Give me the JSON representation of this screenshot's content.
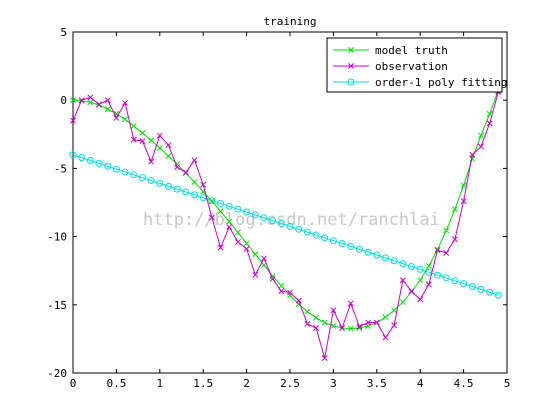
{
  "chart_data": {
    "type": "line",
    "title": "training",
    "xlabel": "",
    "ylabel": "",
    "xlim": [
      0,
      5
    ],
    "ylim": [
      -20,
      5
    ],
    "x_ticks": [
      "0",
      "0.5",
      "1",
      "1.5",
      "2",
      "2.5",
      "3",
      "3.5",
      "4",
      "4.5",
      "5"
    ],
    "y_ticks": [
      "5",
      "0",
      "-5",
      "-10",
      "-15",
      "-20"
    ],
    "grid": false,
    "legend_position": "top-right",
    "watermark": "http://blog.csdn.net/ranchlai",
    "series": [
      {
        "name": "model truth",
        "color": "#00dd00",
        "marker": "x",
        "x": [
          0.0,
          0.1,
          0.2,
          0.3,
          0.4,
          0.5,
          0.6,
          0.7,
          0.8,
          0.9,
          1.0,
          1.1,
          1.2,
          1.3,
          1.4,
          1.5,
          1.6,
          1.7,
          1.8,
          1.9,
          2.0,
          2.1,
          2.2,
          2.3,
          2.4,
          2.5,
          2.6,
          2.7,
          2.8,
          2.9,
          3.0,
          3.1,
          3.2,
          3.3,
          3.4,
          3.5,
          3.6,
          3.7,
          3.8,
          3.9,
          4.0,
          4.1,
          4.2,
          4.3,
          4.4,
          4.5,
          4.6,
          4.7,
          4.8,
          4.9
        ],
        "y": [
          0.0,
          -0.05,
          -0.15,
          -0.35,
          -0.65,
          -1.0,
          -1.4,
          -1.9,
          -2.4,
          -2.95,
          -3.5,
          -4.1,
          -4.7,
          -5.35,
          -6.0,
          -6.7,
          -7.4,
          -8.15,
          -8.9,
          -9.7,
          -10.5,
          -11.3,
          -12.1,
          -12.9,
          -13.6,
          -14.3,
          -14.95,
          -15.5,
          -15.95,
          -16.3,
          -16.55,
          -16.7,
          -16.75,
          -16.7,
          -16.55,
          -16.3,
          -15.9,
          -15.4,
          -14.8,
          -14.05,
          -13.2,
          -12.15,
          -10.95,
          -9.55,
          -8.0,
          -6.25,
          -4.3,
          -2.6,
          -1.0,
          0.7
        ]
      },
      {
        "name": "observation",
        "color": "#cc00cc",
        "marker": "x",
        "x": [
          0.0,
          0.1,
          0.2,
          0.3,
          0.4,
          0.5,
          0.6,
          0.7,
          0.8,
          0.9,
          1.0,
          1.1,
          1.2,
          1.3,
          1.4,
          1.5,
          1.6,
          1.7,
          1.8,
          1.9,
          2.0,
          2.1,
          2.2,
          2.3,
          2.4,
          2.5,
          2.6,
          2.7,
          2.8,
          2.9,
          3.0,
          3.1,
          3.2,
          3.3,
          3.4,
          3.5,
          3.6,
          3.7,
          3.8,
          3.9,
          4.0,
          4.1,
          4.2,
          4.3,
          4.4,
          4.5,
          4.6,
          4.7,
          4.8,
          4.9
        ],
        "y": [
          -1.5,
          0.0,
          0.2,
          -0.3,
          0.0,
          -1.3,
          -0.2,
          -2.9,
          -3.0,
          -4.5,
          -2.6,
          -3.3,
          -4.9,
          -5.3,
          -4.4,
          -6.2,
          -8.6,
          -10.8,
          -9.3,
          -10.4,
          -10.9,
          -12.8,
          -11.6,
          -13.1,
          -14.0,
          -14.1,
          -14.7,
          -16.4,
          -16.7,
          -18.9,
          -15.4,
          -16.7,
          -14.9,
          -16.6,
          -16.3,
          -16.3,
          -17.4,
          -16.5,
          -13.2,
          -14.0,
          -14.6,
          -13.5,
          -11.0,
          -11.2,
          -10.2,
          -7.4,
          -4.0,
          -3.4,
          -1.7,
          0.6
        ]
      },
      {
        "name": "order-1 poly fitting",
        "color": "#00dddd",
        "marker": "o",
        "x": [
          0.0,
          0.1,
          0.2,
          0.3,
          0.4,
          0.5,
          0.6,
          0.7,
          0.8,
          0.9,
          1.0,
          1.1,
          1.2,
          1.3,
          1.4,
          1.5,
          1.6,
          1.7,
          1.8,
          1.9,
          2.0,
          2.1,
          2.2,
          2.3,
          2.4,
          2.5,
          2.6,
          2.7,
          2.8,
          2.9,
          3.0,
          3.1,
          3.2,
          3.3,
          3.4,
          3.5,
          3.6,
          3.7,
          3.8,
          3.9,
          4.0,
          4.1,
          4.2,
          4.3,
          4.4,
          4.5,
          4.6,
          4.7,
          4.8,
          4.9
        ],
        "y": [
          -4.0,
          -4.21,
          -4.42,
          -4.63,
          -4.84,
          -5.05,
          -5.26,
          -5.47,
          -5.68,
          -5.89,
          -6.1,
          -6.31,
          -6.52,
          -6.73,
          -6.94,
          -7.15,
          -7.36,
          -7.57,
          -7.78,
          -7.99,
          -8.2,
          -8.41,
          -8.62,
          -8.83,
          -9.04,
          -9.25,
          -9.46,
          -9.67,
          -9.88,
          -10.09,
          -10.3,
          -10.51,
          -10.72,
          -10.93,
          -11.14,
          -11.35,
          -11.56,
          -11.77,
          -11.98,
          -12.19,
          -12.4,
          -12.61,
          -12.82,
          -13.03,
          -13.24,
          -13.45,
          -13.66,
          -13.87,
          -14.08,
          -14.29
        ]
      }
    ]
  }
}
